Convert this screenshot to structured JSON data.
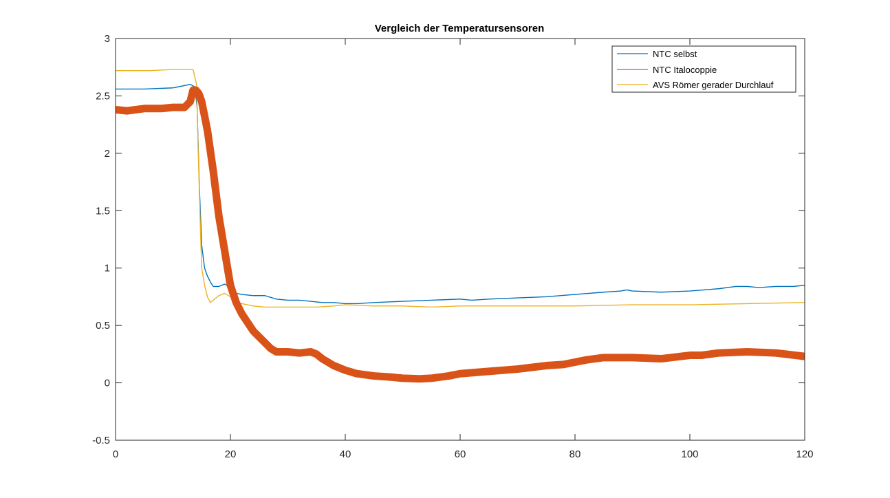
{
  "chart_data": {
    "type": "line",
    "title": "Vergleich der Temperatursensoren",
    "xlabel": "",
    "ylabel": "",
    "xlim": [
      0,
      120
    ],
    "ylim": [
      -0.5,
      3
    ],
    "x_ticks": [
      0,
      20,
      40,
      60,
      80,
      100,
      120
    ],
    "y_ticks": [
      -0.5,
      0,
      0.5,
      1,
      1.5,
      2,
      2.5,
      3
    ],
    "x_tick_labels": [
      "0",
      "20",
      "40",
      "60",
      "80",
      "100",
      "120"
    ],
    "y_tick_labels": [
      "-0.5",
      "0",
      "0.5",
      "1",
      "1.5",
      "2",
      "2.5",
      "3"
    ],
    "grid": false,
    "legend_position": "top-right",
    "series": [
      {
        "name": "NTC selbst",
        "color": "#0072BD",
        "line_style": "thin",
        "x": [
          0,
          5,
          10,
          13,
          13.8,
          14.2,
          14.6,
          15,
          15.5,
          16,
          16.5,
          17,
          18,
          19,
          20,
          21,
          22,
          24,
          26,
          28,
          30,
          32,
          34,
          36,
          38,
          40,
          42,
          45,
          50,
          55,
          60,
          62,
          65,
          70,
          75,
          80,
          85,
          88,
          89,
          90,
          95,
          100,
          105,
          108,
          110,
          112,
          115,
          118,
          120
        ],
        "y": [
          2.56,
          2.56,
          2.57,
          2.6,
          2.58,
          2.4,
          1.7,
          1.2,
          1.0,
          0.93,
          0.88,
          0.84,
          0.84,
          0.86,
          0.83,
          0.78,
          0.77,
          0.76,
          0.76,
          0.73,
          0.72,
          0.72,
          0.71,
          0.7,
          0.7,
          0.69,
          0.69,
          0.7,
          0.71,
          0.72,
          0.73,
          0.72,
          0.73,
          0.74,
          0.75,
          0.77,
          0.79,
          0.8,
          0.81,
          0.8,
          0.79,
          0.8,
          0.82,
          0.84,
          0.84,
          0.83,
          0.84,
          0.84,
          0.85
        ]
      },
      {
        "name": "NTC Italocoppie",
        "color": "#D95319",
        "line_style": "thick",
        "x": [
          0,
          2,
          5,
          8,
          10,
          12,
          13,
          13.5,
          14,
          14.5,
          15,
          16,
          17,
          18,
          19,
          20,
          21,
          22,
          24,
          26,
          27,
          28,
          30,
          32,
          34,
          35,
          36,
          38,
          40,
          42,
          45,
          48,
          50,
          53,
          55,
          58,
          60,
          65,
          70,
          75,
          78,
          80,
          82,
          85,
          90,
          95,
          100,
          102,
          105,
          110,
          115,
          120
        ],
        "y": [
          2.38,
          2.37,
          2.39,
          2.39,
          2.4,
          2.4,
          2.45,
          2.55,
          2.55,
          2.52,
          2.45,
          2.2,
          1.85,
          1.45,
          1.15,
          0.85,
          0.7,
          0.6,
          0.45,
          0.35,
          0.3,
          0.27,
          0.27,
          0.26,
          0.27,
          0.25,
          0.21,
          0.15,
          0.11,
          0.08,
          0.06,
          0.05,
          0.04,
          0.035,
          0.04,
          0.06,
          0.08,
          0.1,
          0.12,
          0.15,
          0.16,
          0.18,
          0.2,
          0.22,
          0.22,
          0.21,
          0.24,
          0.24,
          0.26,
          0.27,
          0.26,
          0.23
        ]
      },
      {
        "name": "AVS Römer gerader Durchlauf",
        "color": "#EDB120",
        "line_style": "thin",
        "x": [
          0,
          3,
          6,
          10,
          13.5,
          14.1,
          14.4,
          14.8,
          15,
          15.5,
          16,
          16.5,
          17,
          18,
          19,
          20,
          21,
          22,
          24,
          26,
          30,
          35,
          38,
          40,
          45,
          50,
          55,
          60,
          70,
          80,
          90,
          100,
          110,
          120
        ],
        "y": [
          2.72,
          2.72,
          2.72,
          2.73,
          2.73,
          2.6,
          2.0,
          1.3,
          1.0,
          0.85,
          0.75,
          0.7,
          0.72,
          0.76,
          0.78,
          0.75,
          0.7,
          0.69,
          0.67,
          0.66,
          0.66,
          0.66,
          0.67,
          0.68,
          0.67,
          0.67,
          0.66,
          0.67,
          0.67,
          0.67,
          0.68,
          0.68,
          0.69,
          0.7
        ]
      }
    ]
  }
}
